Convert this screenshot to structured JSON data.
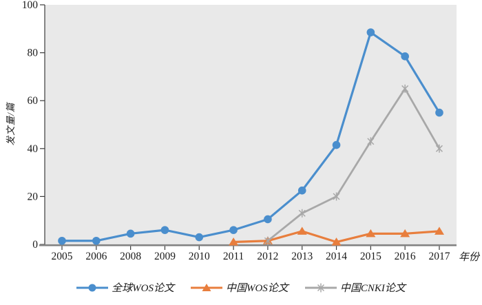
{
  "figure": {
    "background": "#ffffff",
    "plot_background": "#e9e9e9",
    "axis_line_color": "#3a3a3a",
    "baseline_color": "#828282",
    "text_color": "#1a1a1a"
  },
  "chart_data": {
    "type": "line",
    "title": "",
    "xlabel": "年份",
    "ylabel": "发文量/篇",
    "ylim": [
      0,
      100
    ],
    "yticks": [
      0,
      20,
      40,
      60,
      80,
      100
    ],
    "grid": false,
    "legend_position": "bottom",
    "categories": [
      "2005",
      "2006",
      "2008",
      "2009",
      "2010",
      "2011",
      "2012",
      "2013",
      "2014",
      "2015",
      "2016",
      "2017"
    ],
    "series": [
      {
        "id": "global-wos",
        "name": "全球WOS论文",
        "color": "#4a8ecd",
        "marker": "circle",
        "values": [
          1.5,
          1.5,
          4.5,
          6,
          3,
          6,
          10.5,
          22.5,
          41.5,
          88.5,
          78.5,
          55
        ]
      },
      {
        "id": "china-wos",
        "name": "中国WOS论文",
        "color": "#e87e3d",
        "marker": "triangle",
        "values": [
          null,
          null,
          null,
          null,
          null,
          1,
          1.5,
          5.5,
          1,
          4.5,
          4.5,
          5.5
        ]
      },
      {
        "id": "china-cnki",
        "name": "中国CNKI论文",
        "color": "#a8a8a8",
        "marker": "asterisk",
        "values": [
          null,
          null,
          null,
          null,
          null,
          null,
          1.5,
          13,
          20,
          43,
          65,
          40
        ]
      }
    ]
  }
}
